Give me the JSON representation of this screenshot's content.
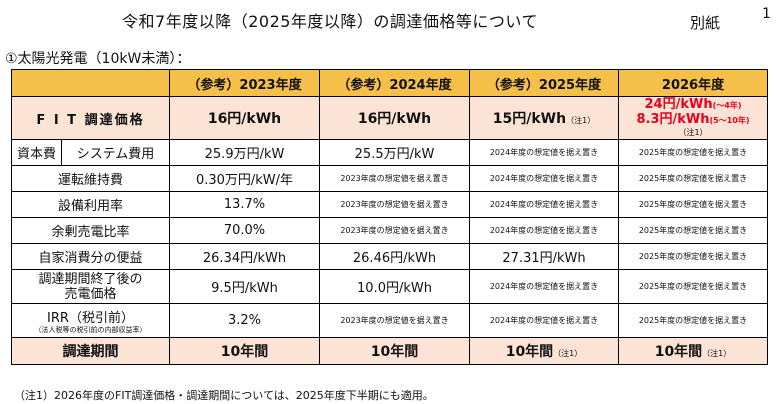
{
  "header": {
    "title": "令和7年度以降（2025年度以降）の調達価格等について",
    "annex": "別紙",
    "page_number": "1"
  },
  "section_label": "①太陽光発電（10kW未満）：",
  "table": {
    "headers": [
      "（参考）2023年度",
      "（参考）2024年度",
      "（参考）2025年度",
      "2026年度"
    ],
    "fit_price": {
      "label": "F I T 調達価格",
      "y2023": "16円/kWh",
      "y2024": "16円/kWh",
      "y2025": "15円/kWh",
      "y2025_note": "（注1）",
      "y2026_line1": "24円/kWh",
      "y2026_line1_sub": "(～4年)",
      "y2026_line2": "8.3円/kWh",
      "y2026_line2_sub": "(5～10年)",
      "y2026_note": "（注1）"
    },
    "capital_cost": {
      "group_label": "資本費",
      "label": "システム費用",
      "y2023": "25.9万円/kW",
      "y2024": "25.5万円/kW",
      "y2025": "2024年度の想定値を据え置き",
      "y2026": "2025年度の想定値を据え置き"
    },
    "rows": [
      {
        "label": "運転維持費",
        "y2023": "0.30万円/kW/年",
        "y2024": "2023年度の想定値を据え置き",
        "y2025": "2024年度の想定値を据え置き",
        "y2026": "2025年度の想定値を据え置き"
      },
      {
        "label": "設備利用率",
        "y2023": "13.7%",
        "y2024": "2023年度の想定値を据え置き",
        "y2025": "2024年度の想定値を据え置き",
        "y2026": "2025年度の想定値を据え置き"
      },
      {
        "label": "余剰売電比率",
        "y2023": "70.0%",
        "y2024": "2023年度の想定値を据え置き",
        "y2025": "2024年度の想定値を据え置き",
        "y2026": "2025年度の想定値を据え置き"
      },
      {
        "label": "自家消費分の便益",
        "y2023": "26.34円/kWh",
        "y2024": "26.46円/kWh",
        "y2025": "27.31円/kWh",
        "y2026": "2025年度の想定値を据え置き"
      }
    ],
    "post_period_price": {
      "label_line1": "調達期間終了後の",
      "label_line2": "売電価格",
      "y2023": "9.5円/kWh",
      "y2024": "10.0円/kWh",
      "y2025": "2024年度の想定値を据え置き",
      "y2026": "2025年度の想定値を据え置き"
    },
    "irr": {
      "label": "IRR（税引前）",
      "sublabel": "（法人税等の税引前の内部収益率）",
      "y2023": "3.2%",
      "y2024": "2023年度の想定値を据え置き",
      "y2025": "2024年度の想定値を据え置き",
      "y2026": "2025年度の想定値を据え置き"
    },
    "period": {
      "label": "調達期間",
      "y2023": "10年間",
      "y2024": "10年間",
      "y2025": "10年間",
      "y2025_note": "（注1）",
      "y2026": "10年間",
      "y2026_note": "（注1）"
    }
  },
  "footnote": "（注1）2026年度のFIT調達価格・調達期間については、2025年度下半期にも適用。",
  "colors": {
    "header_fill": "#f5c04a",
    "highlight_fill": "#fbe4d5",
    "red_text": "#e8001c"
  }
}
